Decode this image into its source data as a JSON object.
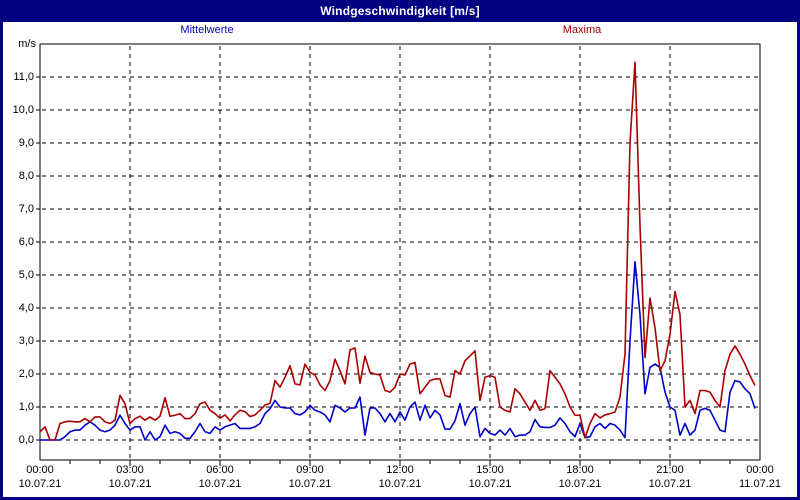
{
  "window": {
    "title": "Windgeschwindigkeit [m/s]"
  },
  "legend": {
    "mean_label": "Mittelwerte",
    "max_label": "Maxima"
  },
  "colors": {
    "titlebar": "#000080",
    "frame": "#000080",
    "mean_series": "#0000cc",
    "max_series": "#aa0000",
    "grid": "#000000",
    "background": "#ffffff"
  },
  "axes": {
    "y_unit": "m/s",
    "y_ticks": [
      "0,0",
      "1,0",
      "2,0",
      "3,0",
      "4,0",
      "5,0",
      "6,0",
      "7,0",
      "8,0",
      "9,0",
      "10,0",
      "11,0"
    ],
    "x_ticks": [
      {
        "hour": 0,
        "time": "00:00",
        "date": "10.07.21"
      },
      {
        "hour": 3,
        "time": "03:00",
        "date": "10.07.21"
      },
      {
        "hour": 6,
        "time": "06:00",
        "date": "10.07.21"
      },
      {
        "hour": 9,
        "time": "09:00",
        "date": "10.07.21"
      },
      {
        "hour": 12,
        "time": "12:00",
        "date": "10.07.21"
      },
      {
        "hour": 15,
        "time": "15:00",
        "date": "10.07.21"
      },
      {
        "hour": 18,
        "time": "18:00",
        "date": "10.07.21"
      },
      {
        "hour": 21,
        "time": "21:00",
        "date": "10.07.21"
      },
      {
        "hour": 24,
        "time": "00:00",
        "date": "11.07.21"
      }
    ]
  },
  "chart_data": {
    "type": "line",
    "title": "Windgeschwindigkeit [m/s]",
    "xlabel": "",
    "ylabel": "m/s",
    "ylim": [
      0,
      11
    ],
    "xlim_hours": [
      0,
      24
    ],
    "grid": true,
    "x_start": "10.07.21 00:00",
    "x_end": "11.07.21 00:00",
    "interval_minutes": 10,
    "series": [
      {
        "name": "Mittelwerte",
        "color": "#0000cc",
        "values": [
          0.0,
          0.0,
          0.0,
          0.0,
          0.0,
          0.1,
          0.25,
          0.3,
          0.3,
          0.45,
          0.55,
          0.45,
          0.3,
          0.25,
          0.3,
          0.45,
          0.75,
          0.5,
          0.3,
          0.4,
          0.4,
          0.0,
          0.25,
          0.0,
          0.1,
          0.45,
          0.2,
          0.25,
          0.2,
          0.05,
          0.05,
          0.25,
          0.5,
          0.25,
          0.2,
          0.4,
          0.3,
          0.4,
          0.45,
          0.5,
          0.35,
          0.35,
          0.35,
          0.4,
          0.5,
          0.8,
          0.95,
          1.2,
          1.0,
          0.97,
          0.97,
          0.8,
          0.76,
          0.85,
          1.05,
          0.9,
          0.85,
          0.76,
          0.55,
          1.05,
          0.97,
          0.85,
          0.97,
          0.97,
          1.3,
          0.15,
          0.97,
          0.97,
          0.8,
          0.55,
          0.8,
          0.55,
          0.85,
          0.6,
          1.0,
          1.15,
          0.6,
          1.05,
          0.67,
          0.9,
          0.76,
          0.33,
          0.33,
          0.58,
          1.1,
          0.45,
          0.8,
          1.0,
          0.1,
          0.35,
          0.2,
          0.15,
          0.3,
          0.15,
          0.35,
          0.1,
          0.15,
          0.15,
          0.25,
          0.62,
          0.4,
          0.38,
          0.38,
          0.45,
          0.67,
          0.5,
          0.25,
          0.1,
          0.5,
          0.07,
          0.1,
          0.4,
          0.5,
          0.35,
          0.5,
          0.45,
          0.3,
          0.07,
          3.0,
          5.4,
          3.8,
          1.4,
          2.2,
          2.3,
          2.2,
          1.45,
          1.0,
          0.9,
          0.15,
          0.5,
          0.15,
          0.3,
          0.9,
          0.96,
          0.9,
          0.6,
          0.3,
          0.25,
          1.45,
          1.8,
          1.76,
          1.55,
          1.4,
          0.95
        ]
      },
      {
        "name": "Maxima",
        "color": "#aa0000",
        "values": [
          0.25,
          0.4,
          0.0,
          0.0,
          0.5,
          0.55,
          0.57,
          0.55,
          0.55,
          0.65,
          0.55,
          0.7,
          0.7,
          0.55,
          0.5,
          0.6,
          1.35,
          1.1,
          0.5,
          0.65,
          0.72,
          0.6,
          0.7,
          0.6,
          0.72,
          1.28,
          0.72,
          0.75,
          0.8,
          0.65,
          0.65,
          0.8,
          1.1,
          1.15,
          0.9,
          0.8,
          0.66,
          0.76,
          0.58,
          0.76,
          0.9,
          0.86,
          0.71,
          0.76,
          0.9,
          1.06,
          1.11,
          1.8,
          1.6,
          1.9,
          2.25,
          1.7,
          1.67,
          2.3,
          2.05,
          1.97,
          1.67,
          1.5,
          1.8,
          2.45,
          2.1,
          1.7,
          2.73,
          2.79,
          1.72,
          2.54,
          2.05,
          2.0,
          1.97,
          1.5,
          1.45,
          1.6,
          2.0,
          1.97,
          2.3,
          2.35,
          1.4,
          1.6,
          1.8,
          1.85,
          1.85,
          1.35,
          1.3,
          2.1,
          2.0,
          2.4,
          2.55,
          2.7,
          1.2,
          1.9,
          1.95,
          1.9,
          1.0,
          0.9,
          0.85,
          1.55,
          1.4,
          1.15,
          0.9,
          1.2,
          0.9,
          0.95,
          2.1,
          1.9,
          1.7,
          1.4,
          1.0,
          0.75,
          0.75,
          0.07,
          0.5,
          0.8,
          0.67,
          0.76,
          0.8,
          0.85,
          1.3,
          2.6,
          9.0,
          11.45,
          6.5,
          2.5,
          4.3,
          3.4,
          2.1,
          2.4,
          3.2,
          4.5,
          3.8,
          1.0,
          1.2,
          0.8,
          1.5,
          1.5,
          1.45,
          1.2,
          1.0,
          2.1,
          2.6,
          2.85,
          2.6,
          2.3,
          1.95,
          1.65
        ]
      }
    ]
  }
}
